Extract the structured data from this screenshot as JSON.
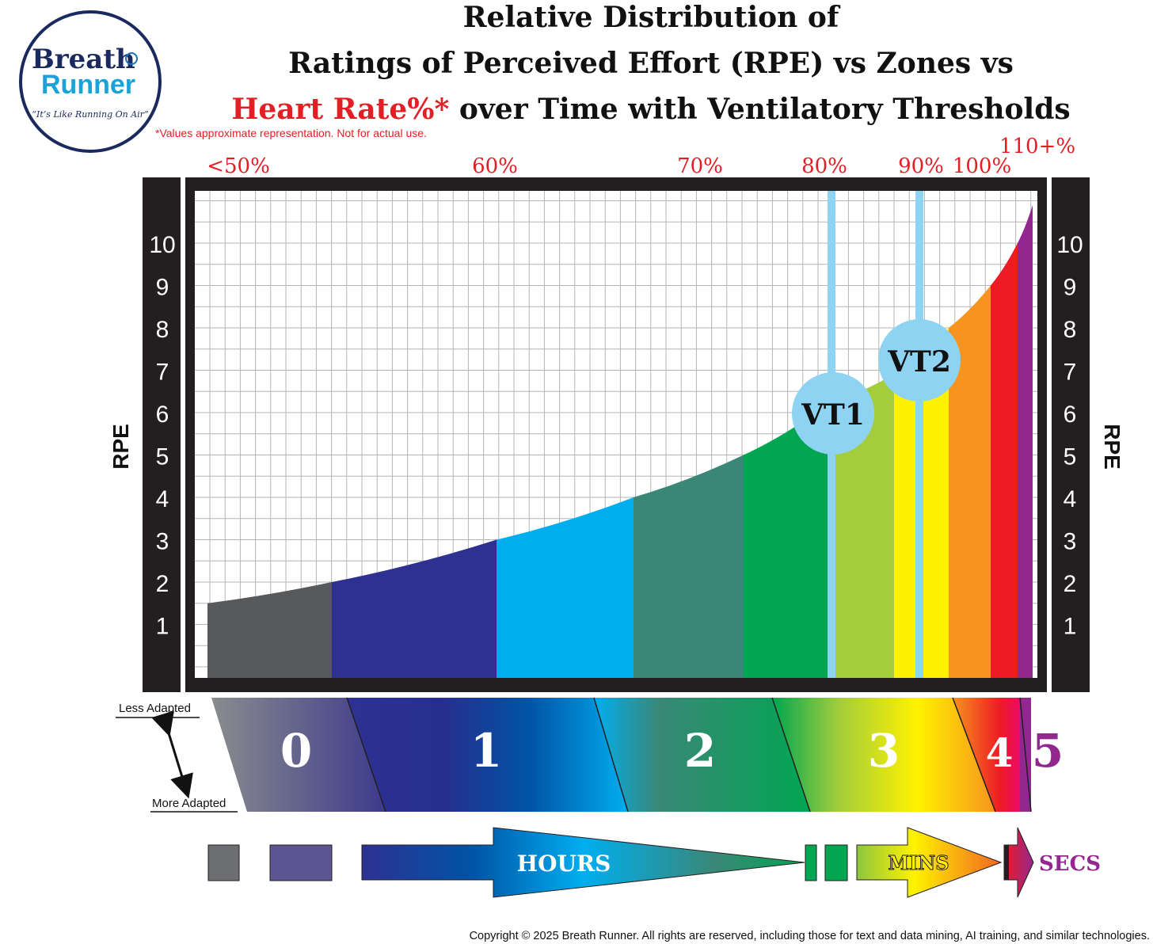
{
  "logo": {
    "line1": "Breath",
    "line2": "Runner",
    "tagline": "“It’s Like Running On Air”"
  },
  "title": {
    "line1": "Relative Distribution of",
    "line2": "Ratings of Perceived Effort (RPE) vs Zones vs",
    "line3_highlight": "Heart Rate%*",
    "line3_rest": " over Time with Ventilatory Thresholds",
    "highlight_color": "#e31e24"
  },
  "disclaimer": "*Values approximate representation. Not for actual use.",
  "colors": {
    "frame": "#231f20",
    "grid": "#b5b5b5",
    "vt_line": "#8fd3f2",
    "vt_circle": "#8fd3f2",
    "hr_label": "#e31e24",
    "zone5_label": "#92278f"
  },
  "chart_data": {
    "type": "area",
    "ylabel": "RPE",
    "y_ticks": [
      "1",
      "2",
      "3",
      "4",
      "5",
      "6",
      "7",
      "8",
      "9",
      "10"
    ],
    "ylim": [
      0,
      11
    ],
    "x_categories": [
      "<50%",
      "60%",
      "70%",
      "80%",
      "90%",
      "100%",
      "110+%"
    ],
    "heart_rate_labels": [
      "<50%",
      "60%",
      "70%",
      "80%",
      "90%",
      "100%",
      "110+%"
    ],
    "bands": [
      {
        "zone": "0",
        "color": "#58595b",
        "rpe_start": 1.5,
        "rpe_end": 2.0
      },
      {
        "zone": "1",
        "color": "#2e3192",
        "rpe_start": 2.0,
        "rpe_end": 3.0
      },
      {
        "zone": "1",
        "color": "#00aeef",
        "rpe_start": 3.0,
        "rpe_end": 4.0
      },
      {
        "zone": "2",
        "color": "#3a8777",
        "rpe_start": 4.0,
        "rpe_end": 5.0
      },
      {
        "zone": "2",
        "color": "#00a651",
        "rpe_start": 5.0,
        "rpe_end": 6.2
      },
      {
        "zone": "3",
        "color": "#a3cd3b",
        "rpe_start": 6.2,
        "rpe_end": 6.9
      },
      {
        "zone": "3",
        "color": "#fff200",
        "rpe_start": 6.9,
        "rpe_end": 8.0
      },
      {
        "zone": "4",
        "color": "#f7941d",
        "rpe_start": 8.0,
        "rpe_end": 9.0
      },
      {
        "zone": "4",
        "color": "#ed1c24",
        "rpe_start": 9.0,
        "rpe_end": 10.0
      },
      {
        "zone": "5",
        "color": "#92278f",
        "rpe_start": 10.0,
        "rpe_end": 11.3
      }
    ],
    "thresholds": [
      {
        "label": "VT1",
        "rpe": 6.2
      },
      {
        "label": "VT2",
        "rpe": 7.2
      }
    ],
    "zones": [
      "0",
      "1",
      "2",
      "3",
      "4",
      "5"
    ],
    "adaptation": {
      "top": "Less Adapted",
      "bottom": "More Adapted"
    },
    "time_labels": [
      "HOURS",
      "MINS",
      "SECS"
    ]
  },
  "copyright": "Copyright © 2025 Breath Runner. All rights are reserved, including those for text and data mining, AI training, and similar technologies."
}
